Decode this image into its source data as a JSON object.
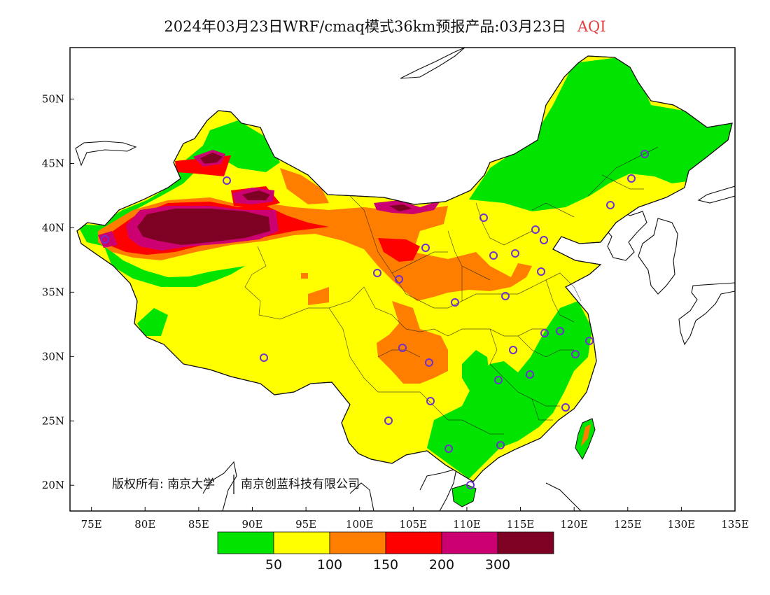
{
  "title": {
    "main": "2024年03月23日WRF/cmaq模式36km预报产品:03月23日",
    "variable": "AQI"
  },
  "axes": {
    "lon_ticks": [
      "75E",
      "80E",
      "85E",
      "90E",
      "95E",
      "100E",
      "105E",
      "110E",
      "115E",
      "120E",
      "125E",
      "130E",
      "135E"
    ],
    "lat_ticks": [
      "50N",
      "45N",
      "40N",
      "35N",
      "30N",
      "25N",
      "20N"
    ],
    "lon_range": [
      73,
      135
    ],
    "lat_range": [
      18,
      54
    ]
  },
  "copyright": {
    "owner1": "版权所有: 南京大学",
    "owner2": "南京创蓝科技有限公司"
  },
  "legend": {
    "colors": [
      "#00e400",
      "#ffff00",
      "#ff7e00",
      "#ff0000",
      "#cc0070",
      "#7e0023"
    ],
    "labels": [
      "50",
      "100",
      "150",
      "200",
      "300"
    ]
  },
  "colors": {
    "good": "#00e400",
    "moderate": "#ffff00",
    "usg": "#ff7e00",
    "unhealthy": "#ff0000",
    "very_unhealthy": "#cc0070",
    "hazardous": "#7e0023",
    "station_marker": "#7030d0"
  }
}
